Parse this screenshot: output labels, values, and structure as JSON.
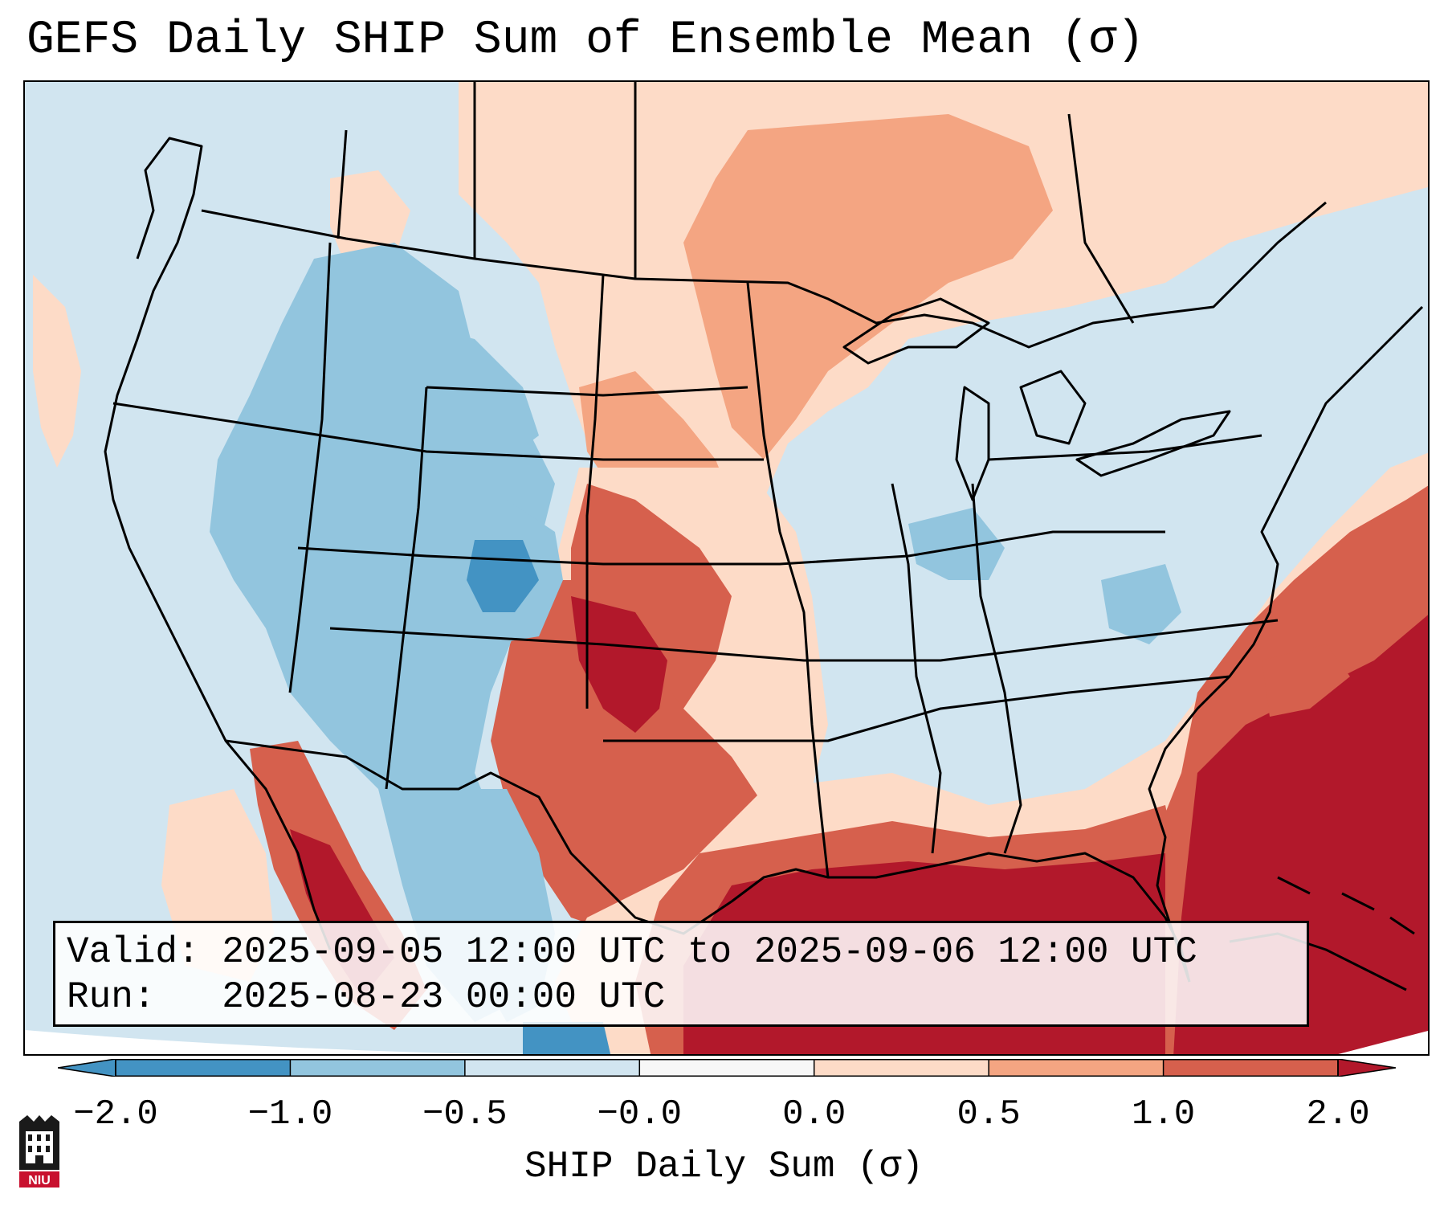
{
  "title": "GEFS Daily SHIP Sum of Ensemble Mean (σ)",
  "info": {
    "valid_label": "Valid:",
    "valid_value": "2025-09-05 12:00 UTC to 2025-09-06 12:00 UTC",
    "run_label": "Run:",
    "run_value": "2025-08-23 00:00 UTC"
  },
  "colorbar": {
    "label": "SHIP Daily Sum (σ)",
    "ticks": [
      "−2.0",
      "−1.0",
      "−0.5",
      "−0.0",
      "0.0",
      "0.5",
      "1.0",
      "2.0"
    ],
    "colors": [
      "#4393c3",
      "#92c5de",
      "#d1e5f0",
      "#f7f7f7",
      "#fddbc7",
      "#f4a582",
      "#d6604d",
      "#b2182b"
    ],
    "extend": "both"
  },
  "map": {
    "region": "Contiguous United States",
    "projection": "Lambert Conformal",
    "field": "SHIP daily sum ensemble mean anomaly"
  },
  "logo": {
    "text": "NIU"
  }
}
